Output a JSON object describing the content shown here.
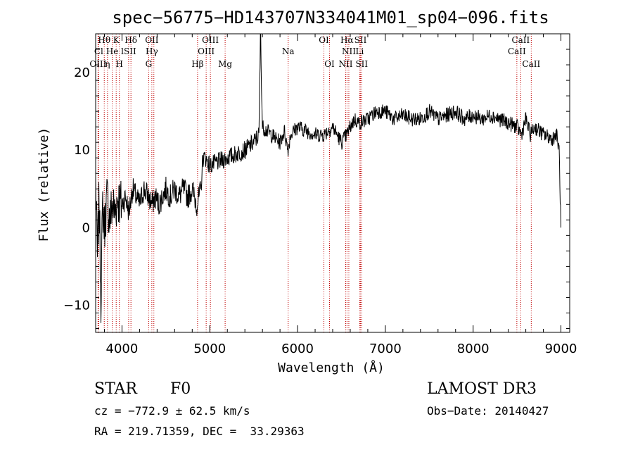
{
  "chart_data": {
    "type": "line",
    "title": "spec−56775−HD143707N334041M01_sp04−096.fits",
    "xlabel": "Wavelength (Å)",
    "ylabel": "Flux (relative)",
    "xlim": [
      3700,
      9100
    ],
    "ylim": [
      -13.5,
      25
    ],
    "xticks": [
      4000,
      5000,
      6000,
      7000,
      8000,
      9000
    ],
    "xtick_labels": [
      "4000",
      "5000",
      "6000",
      "7000",
      "8000",
      "9000"
    ],
    "yticks": [
      -10,
      0,
      10,
      20
    ],
    "ytick_labels": [
      "−10",
      "0",
      "10",
      "20"
    ],
    "line_color": "#000000",
    "marker_color": "#c00000",
    "spectrum": {
      "x": [
        3700,
        3720,
        3740,
        3760,
        3780,
        3800,
        3830,
        3860,
        3890,
        3920,
        3950,
        3980,
        4000,
        4040,
        4080,
        4120,
        4160,
        4200,
        4250,
        4300,
        4340,
        4380,
        4420,
        4460,
        4500,
        4550,
        4600,
        4650,
        4700,
        4750,
        4800,
        4850,
        4880,
        4900,
        4920,
        4950,
        5000,
        5100,
        5200,
        5300,
        5400,
        5500,
        5560,
        5577,
        5600,
        5700,
        5800,
        5850,
        5890,
        5920,
        6000,
        6100,
        6200,
        6300,
        6400,
        6500,
        6560,
        6600,
        6650,
        6700,
        6800,
        6900,
        7000,
        7100,
        7200,
        7300,
        7400,
        7500,
        7600,
        7700,
        7800,
        7900,
        8000,
        8100,
        8200,
        8300,
        8400,
        8500,
        8550,
        8600,
        8650,
        8700,
        8800,
        8900,
        8950,
        8980,
        9000
      ],
      "y": [
        6,
        -4,
        4,
        -9,
        3,
        0,
        4,
        1,
        3,
        2,
        4,
        3,
        3,
        4,
        2,
        5,
        4,
        3,
        5,
        4,
        3,
        4,
        3,
        4,
        5,
        4,
        5,
        4,
        5,
        4,
        5,
        3,
        4,
        5,
        9,
        9,
        8,
        8.5,
        9,
        9.5,
        10,
        11,
        12,
        25,
        13,
        12,
        11,
        12.5,
        10,
        12,
        13,
        12.5,
        12,
        12,
        13,
        11,
        12,
        13,
        14,
        13.5,
        14,
        15,
        15,
        14,
        14.5,
        14,
        14,
        15,
        14,
        14.5,
        15,
        14,
        14.5,
        14,
        14.5,
        14,
        13.5,
        13,
        12,
        14,
        12,
        13,
        12,
        11.5,
        12,
        10,
        0
      ]
    },
    "annotations": [
      {
        "label": "Hθ",
        "x": 3798,
        "row": 0
      },
      {
        "label": "K",
        "x": 3934,
        "row": 0
      },
      {
        "label": "Hδ",
        "x": 4102,
        "row": 0
      },
      {
        "label": "OII",
        "x": 4340,
        "row": 0
      },
      {
        "label": "OIII",
        "x": 5007,
        "row": 0
      },
      {
        "label": "OI",
        "x": 6300,
        "row": 0
      },
      {
        "label": "Hα",
        "x": 6563,
        "row": 0
      },
      {
        "label": "SII",
        "x": 6717,
        "row": 0
      },
      {
        "label": "CaII",
        "x": 8542,
        "row": 0
      },
      {
        "label": "Cl",
        "x": 3735,
        "row": 1
      },
      {
        "label": "He",
        "x": 3889,
        "row": 1
      },
      {
        "label": "lSII",
        "x": 4076,
        "row": 1
      },
      {
        "label": "Hγ",
        "x": 4340,
        "row": 1
      },
      {
        "label": "OIII",
        "x": 4959,
        "row": 1
      },
      {
        "label": "Na",
        "x": 5893,
        "row": 1
      },
      {
        "label": "NII",
        "x": 6584,
        "row": 1
      },
      {
        "label": "Li",
        "x": 6708,
        "row": 1
      },
      {
        "label": "CaII",
        "x": 8498,
        "row": 1
      },
      {
        "label": "OIII",
        "x": 3727,
        "row": 2
      },
      {
        "label": "η",
        "x": 3835,
        "row": 2
      },
      {
        "label": "H",
        "x": 3970,
        "row": 2
      },
      {
        "label": "G",
        "x": 4304,
        "row": 2
      },
      {
        "label": "Hβ",
        "x": 4861,
        "row": 2
      },
      {
        "label": "Mg",
        "x": 5175,
        "row": 2
      },
      {
        "label": "OI",
        "x": 6364,
        "row": 2
      },
      {
        "label": "NII",
        "x": 6548,
        "row": 2
      },
      {
        "label": "SII",
        "x": 6731,
        "row": 2
      },
      {
        "label": "CaII",
        "x": 8662,
        "row": 2
      }
    ],
    "marker_lines": [
      3727,
      3735,
      3798,
      3835,
      3889,
      3934,
      3970,
      4076,
      4102,
      4304,
      4340,
      4363,
      4861,
      4959,
      5007,
      5175,
      5893,
      6300,
      6364,
      6548,
      6563,
      6584,
      6708,
      6717,
      6731,
      8498,
      8542,
      8662
    ]
  },
  "info": {
    "class_label": "STAR",
    "subclass": "F0",
    "survey": "LAMOST DR3",
    "cz": "cz = −772.9 ± 62.5 km/s",
    "obs_date": "Obs−Date: 20140427",
    "coords": "RA = 219.71359, DEC =  33.29363"
  }
}
